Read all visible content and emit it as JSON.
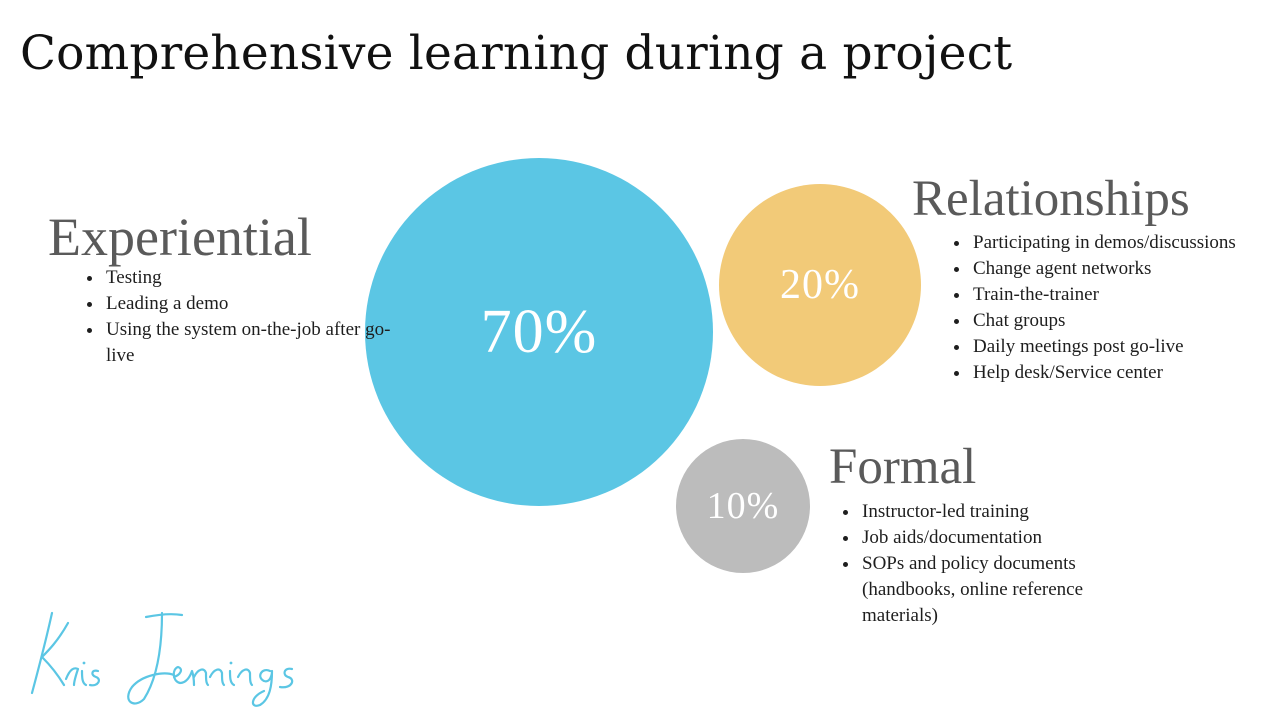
{
  "title": "Comprehensive learning during a project",
  "colors": {
    "experiential": "#5bc6e4",
    "relationships": "#f2ca78",
    "formal": "#bcbcbc"
  },
  "circles": {
    "experiential": "70%",
    "relationships": "20%",
    "formal": "10%"
  },
  "sections": {
    "experiential": {
      "heading": "Experiential",
      "items": [
        "Testing",
        "Leading a demo",
        "Using the system on-the-job after go-live"
      ]
    },
    "relationships": {
      "heading": "Relationships",
      "items": [
        "Participating in demos/discussions",
        "Change agent networks",
        "Train-the-trainer",
        "Chat groups",
        "Daily meetings post go-live",
        "Help desk/Service center"
      ]
    },
    "formal": {
      "heading": "Formal",
      "items": [
        "Instructor-led training",
        "Job aids/documentation",
        "SOPs and policy documents (handbooks, online reference materials)"
      ]
    }
  },
  "signature": "Kris Jennings"
}
